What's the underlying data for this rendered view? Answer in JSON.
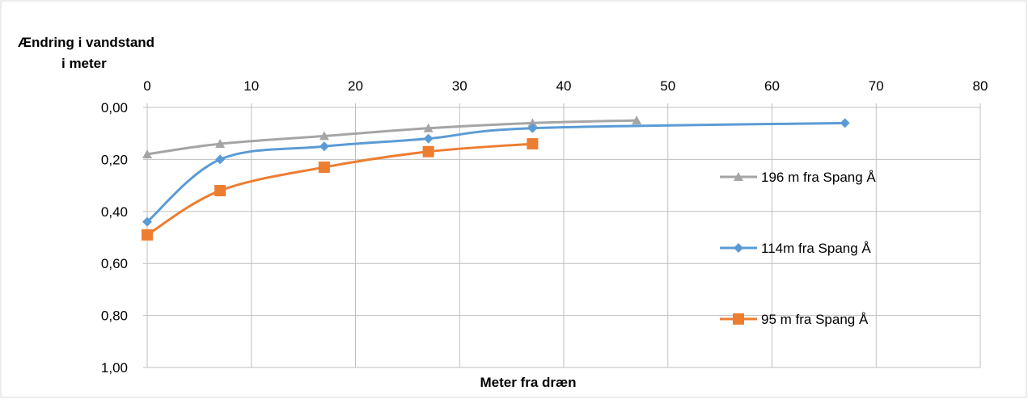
{
  "chart_data": {
    "type": "line",
    "title": "",
    "ylabel": "Ændring i vandstand i meter",
    "ylabel_lines": [
      "Ændring i vandstand",
      "i meter"
    ],
    "xlabel": "Meter fra dræn",
    "xlim": [
      0,
      80
    ],
    "ylim": [
      0,
      1
    ],
    "y_inverted": true,
    "x_axis_position": "top",
    "x_ticks": [
      0,
      10,
      20,
      30,
      40,
      50,
      60,
      70,
      80
    ],
    "x_tick_labels": [
      "0",
      "10",
      "20",
      "30",
      "40",
      "50",
      "60",
      "70",
      "80"
    ],
    "y_ticks": [
      0,
      0.2,
      0.4,
      0.6,
      0.8,
      1.0
    ],
    "y_tick_labels": [
      "0,00",
      "0,20",
      "0,40",
      "0,60",
      "0,80",
      "1,00"
    ],
    "grid": true,
    "legend_position": "right",
    "series": [
      {
        "name": "196 m fra Spang Å",
        "color": "#a5a5a5",
        "marker": "triangle",
        "x": [
          0,
          7,
          17,
          27,
          37,
          47
        ],
        "y": [
          0.18,
          0.14,
          0.11,
          0.08,
          0.06,
          0.05
        ]
      },
      {
        "name": "114m fra Spang Å",
        "color": "#5b9bd5",
        "marker": "diamond",
        "x": [
          0,
          7,
          17,
          27,
          37,
          67
        ],
        "y": [
          0.44,
          0.2,
          0.15,
          0.12,
          0.08,
          0.06
        ]
      },
      {
        "name": "95 m fra Spang Å",
        "color": "#ed7d31",
        "marker": "square",
        "x": [
          0,
          7,
          17,
          27,
          37
        ],
        "y": [
          0.49,
          0.32,
          0.23,
          0.17,
          0.14
        ]
      }
    ]
  }
}
